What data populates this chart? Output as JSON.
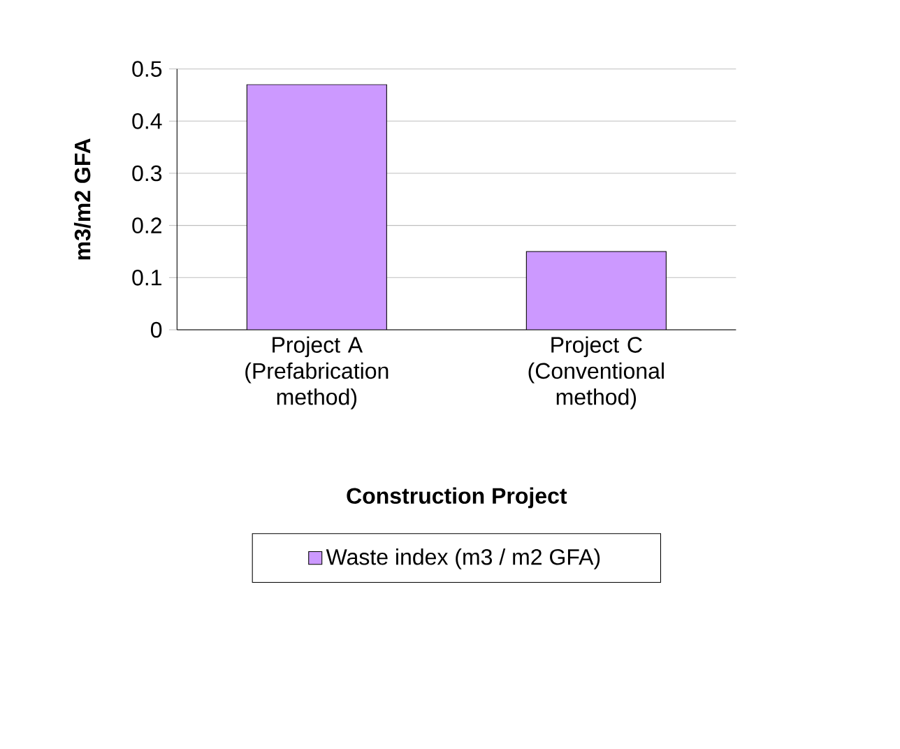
{
  "chart_data": {
    "type": "bar",
    "xlabel": "Construction Project",
    "ylabel": "m3/m2 GFA",
    "categories": [
      "Project A (Prefabrication method)",
      "Project C (Conventional method)"
    ],
    "series": [
      {
        "name": "Waste index (m3 / m2 GFA)",
        "color": "#cc99ff",
        "values": [
          0.47,
          0.15
        ]
      }
    ],
    "ylim": [
      0,
      0.5
    ],
    "yticks": [
      0,
      0.1,
      0.2,
      0.3,
      0.4,
      0.5
    ],
    "grid": "y",
    "legend": "bottom"
  }
}
